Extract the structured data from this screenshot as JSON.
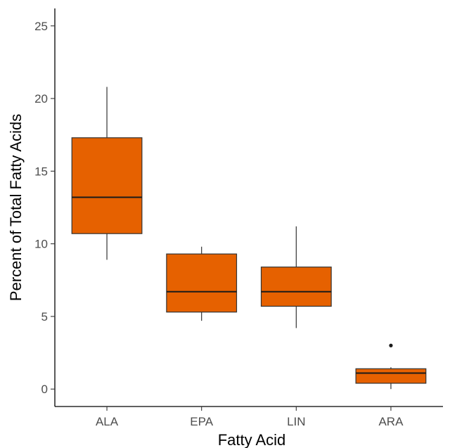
{
  "chart_data": {
    "type": "box",
    "xlabel": "Fatty Acid",
    "ylabel": "Percent of Total Fatty Acids",
    "ylim": [
      -1.2,
      26.2
    ],
    "yticks": [
      0,
      5,
      10,
      15,
      20,
      25
    ],
    "grid": false,
    "legend": "none",
    "fill_color": "#E66100",
    "line_color": "#333333",
    "categories": [
      "ALA",
      "EPA",
      "LIN",
      "ARA"
    ],
    "boxes": [
      {
        "category": "ALA",
        "whisker_low": 8.9,
        "q1": 10.7,
        "median": 13.2,
        "q3": 17.3,
        "whisker_high": 20.8,
        "outliers": []
      },
      {
        "category": "EPA",
        "whisker_low": 4.7,
        "q1": 5.3,
        "median": 6.7,
        "q3": 9.3,
        "whisker_high": 9.8,
        "outliers": []
      },
      {
        "category": "LIN",
        "whisker_low": 4.2,
        "q1": 5.7,
        "median": 6.7,
        "q3": 8.4,
        "whisker_high": 11.2,
        "outliers": []
      },
      {
        "category": "ARA",
        "whisker_low": 0.0,
        "q1": 0.4,
        "median": 1.1,
        "q3": 1.4,
        "whisker_high": 1.5,
        "outliers": [
          3.0
        ]
      }
    ]
  }
}
